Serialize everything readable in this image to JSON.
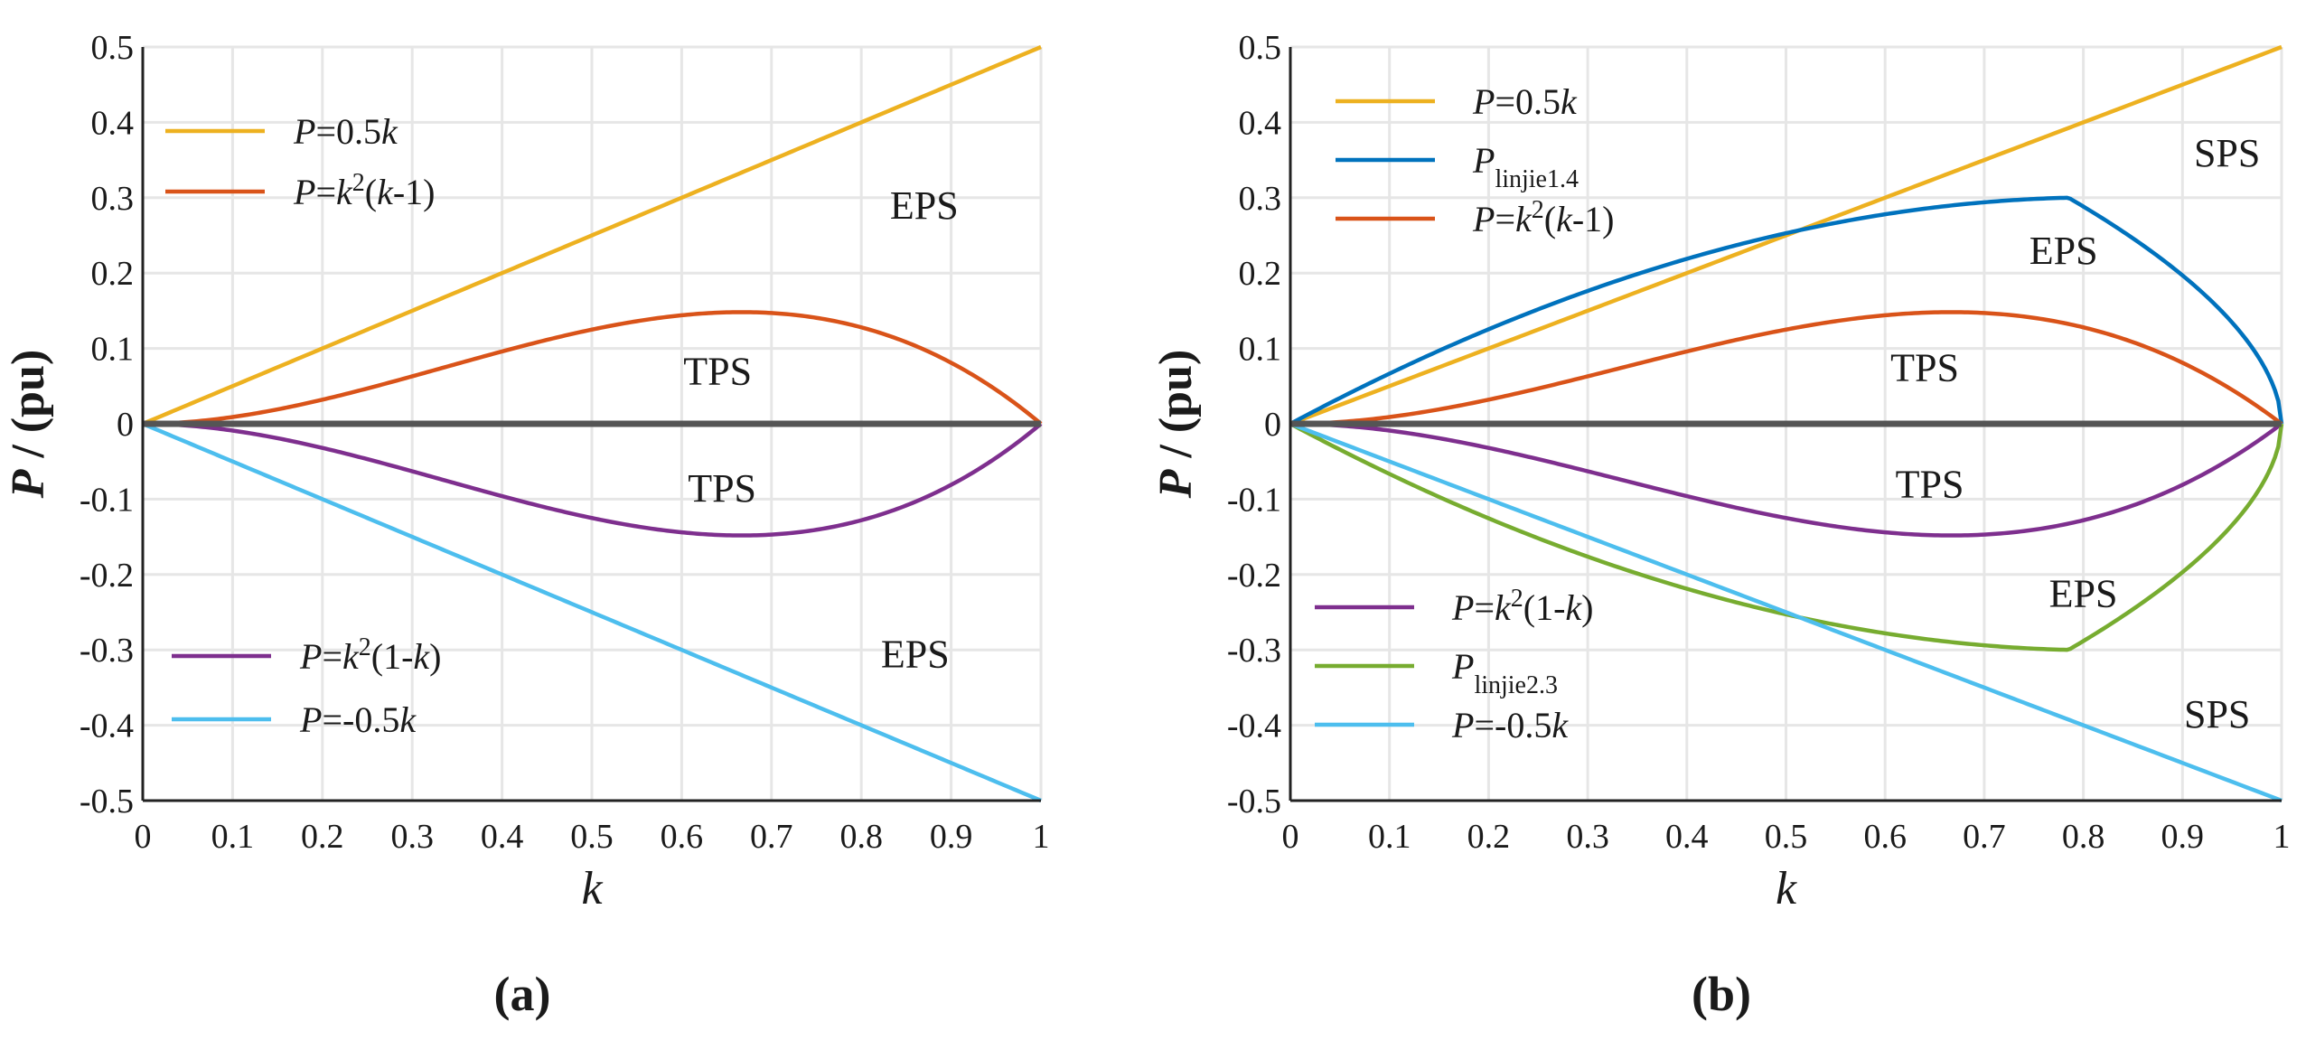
{
  "chart_data": [
    {
      "type": "line",
      "panel_label": "(a)",
      "xlabel": "k",
      "ylabel": "P / (pu)",
      "xlim": [
        0,
        1
      ],
      "ylim": [
        -0.5,
        0.5
      ],
      "grid": true,
      "x_ticks": [
        "0",
        "0.1",
        "0.2",
        "0.3",
        "0.4",
        "0.5",
        "0.6",
        "0.7",
        "0.8",
        "0.9",
        "1"
      ],
      "y_ticks": [
        "0.5",
        "0.4",
        "0.3",
        "0.2",
        "0.1",
        "0",
        "-0.1",
        "-0.2",
        "-0.3",
        "-0.4",
        "-0.5"
      ],
      "series": [
        {
          "name": "P=0.5k",
          "formula": "half",
          "color": "#EDB120",
          "x": [
            0,
            1
          ],
          "y": [
            0,
            0.5
          ]
        },
        {
          "name": "P=k2(k-1)",
          "formula": "k2km1",
          "color": "#D95319",
          "x": [
            0,
            0.333,
            0.5,
            0.667,
            0.8,
            1
          ],
          "y": [
            0,
            0.074,
            0.125,
            0.148,
            0.128,
            0
          ]
        },
        {
          "name": "P=k2(1-k)",
          "formula": "k21mk",
          "color": "#7E2F8E",
          "x": [
            0,
            0.333,
            0.5,
            0.667,
            0.8,
            1
          ],
          "y": [
            0,
            -0.074,
            -0.125,
            -0.148,
            -0.128,
            0
          ]
        },
        {
          "name": "P=-0.5k",
          "formula": "neghalf",
          "color": "#4DBEEE",
          "x": [
            0,
            1
          ],
          "y": [
            0,
            -0.5
          ]
        },
        {
          "name": "P=0",
          "formula": "zero",
          "color": "#555555",
          "x": [
            0,
            1
          ],
          "y": [
            0,
            0
          ]
        }
      ],
      "legends": [
        {
          "position": "top-left",
          "entries": [
            {
              "color": "#EDB120",
              "parts": [
                {
                  "t": "P"
                },
                {
                  "t": "=0.5"
                },
                {
                  "t": "k"
                }
              ]
            },
            {
              "color": "#D95319",
              "parts": [
                {
                  "t": "P"
                },
                {
                  "t": "="
                },
                {
                  "t": "k"
                },
                {
                  "t": "2",
                  "sup": true
                },
                {
                  "t": "("
                },
                {
                  "t": "k"
                },
                {
                  "t": "-1)"
                }
              ]
            }
          ]
        },
        {
          "position": "bottom-left",
          "entries": [
            {
              "color": "#7E2F8E",
              "parts": [
                {
                  "t": "P"
                },
                {
                  "t": "="
                },
                {
                  "t": "k"
                },
                {
                  "t": "2",
                  "sup": true
                },
                {
                  "t": "(1-"
                },
                {
                  "t": "k"
                },
                {
                  "t": ")"
                }
              ]
            },
            {
              "color": "#4DBEEE",
              "parts": [
                {
                  "t": "P"
                },
                {
                  "t": "=-0.5"
                },
                {
                  "t": "k"
                }
              ]
            }
          ]
        }
      ],
      "annotations": [
        {
          "text": "EPS",
          "x": 0.87,
          "y": 0.29
        },
        {
          "text": "TPS",
          "x": 0.64,
          "y": 0.07
        },
        {
          "text": "TPS",
          "x": 0.645,
          "y": -0.085
        },
        {
          "text": "EPS",
          "x": 0.86,
          "y": -0.305
        }
      ]
    },
    {
      "type": "line",
      "panel_label": "(b)",
      "xlabel": "k",
      "ylabel": "P / (pu)",
      "xlim": [
        0,
        1
      ],
      "ylim": [
        -0.5,
        0.5
      ],
      "grid": true,
      "x_ticks": [
        "0",
        "0.1",
        "0.2",
        "0.3",
        "0.4",
        "0.5",
        "0.6",
        "0.7",
        "0.8",
        "0.9",
        "1"
      ],
      "y_ticks": [
        "0.5",
        "0.4",
        "0.3",
        "0.2",
        "0.1",
        "0",
        "-0.1",
        "-0.2",
        "-0.3",
        "-0.4",
        "-0.5"
      ],
      "series": [
        {
          "name": "P=0.5k",
          "formula": "half",
          "color": "#EDB120",
          "x": [
            0,
            1
          ],
          "y": [
            0,
            0.5
          ]
        },
        {
          "name": "Plinjie1.4",
          "formula": "linjie14",
          "color": "#0072BD",
          "x": [
            0,
            0.2,
            0.4,
            0.6,
            0.785,
            0.9,
            0.97,
            1
          ],
          "y": [
            0,
            0.095,
            0.18,
            0.25,
            0.3,
            0.27,
            0.18,
            0
          ]
        },
        {
          "name": "P=k2(k-1)",
          "formula": "k2km1",
          "color": "#D95319",
          "x": [
            0,
            0.333,
            0.5,
            0.667,
            0.8,
            1
          ],
          "y": [
            0,
            0.074,
            0.125,
            0.148,
            0.128,
            0
          ]
        },
        {
          "name": "P=k2(1-k)",
          "formula": "k21mk",
          "color": "#7E2F8E",
          "x": [
            0,
            0.333,
            0.5,
            0.667,
            0.8,
            1
          ],
          "y": [
            0,
            -0.074,
            -0.125,
            -0.148,
            -0.128,
            0
          ]
        },
        {
          "name": "Plinjie2.3",
          "formula": "linjie23",
          "color": "#77AC30",
          "x": [
            0,
            0.2,
            0.4,
            0.6,
            0.785,
            0.9,
            0.97,
            1
          ],
          "y": [
            0,
            -0.095,
            -0.18,
            -0.25,
            -0.3,
            -0.27,
            -0.18,
            0
          ]
        },
        {
          "name": "P=-0.5k",
          "formula": "neghalf",
          "color": "#4DBEEE",
          "x": [
            0,
            1
          ],
          "y": [
            0,
            -0.5
          ]
        },
        {
          "name": "P=0",
          "formula": "zero",
          "color": "#555555",
          "x": [
            0,
            1
          ],
          "y": [
            0,
            0
          ]
        }
      ],
      "legends": [
        {
          "position": "top-left",
          "entries": [
            {
              "color": "#EDB120",
              "parts": [
                {
                  "t": "P"
                },
                {
                  "t": "=0.5"
                },
                {
                  "t": "k"
                }
              ]
            },
            {
              "color": "#0072BD",
              "parts": [
                {
                  "t": "P"
                },
                {
                  "t": "linjie1.4",
                  "sub": true
                }
              ]
            },
            {
              "color": "#D95319",
              "parts": [
                {
                  "t": "P"
                },
                {
                  "t": "="
                },
                {
                  "t": "k"
                },
                {
                  "t": "2",
                  "sup": true
                },
                {
                  "t": "("
                },
                {
                  "t": "k"
                },
                {
                  "t": "-1)"
                }
              ]
            }
          ]
        },
        {
          "position": "bottom-left",
          "entries": [
            {
              "color": "#7E2F8E",
              "parts": [
                {
                  "t": "P"
                },
                {
                  "t": "="
                },
                {
                  "t": "k"
                },
                {
                  "t": "2",
                  "sup": true
                },
                {
                  "t": "(1-"
                },
                {
                  "t": "k"
                },
                {
                  "t": ")"
                }
              ]
            },
            {
              "color": "#77AC30",
              "parts": [
                {
                  "t": "P"
                },
                {
                  "t": "linjie2.3",
                  "sub": true
                }
              ]
            },
            {
              "color": "#4DBEEE",
              "parts": [
                {
                  "t": "P"
                },
                {
                  "t": "=-0.5"
                },
                {
                  "t": "k"
                }
              ]
            }
          ]
        }
      ],
      "annotations": [
        {
          "text": "SPS",
          "x": 0.945,
          "y": 0.36
        },
        {
          "text": "EPS",
          "x": 0.78,
          "y": 0.23
        },
        {
          "text": "TPS",
          "x": 0.64,
          "y": 0.075
        },
        {
          "text": "TPS",
          "x": 0.645,
          "y": -0.08
        },
        {
          "text": "EPS",
          "x": 0.8,
          "y": -0.225
        },
        {
          "text": "SPS",
          "x": 0.935,
          "y": -0.385
        }
      ]
    }
  ]
}
